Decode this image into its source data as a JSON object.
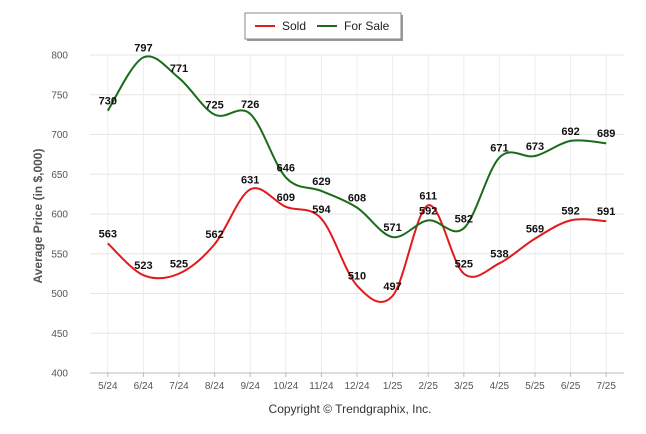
{
  "chart_data": {
    "type": "line",
    "categories": [
      "5/24",
      "6/24",
      "7/24",
      "8/24",
      "9/24",
      "10/24",
      "11/24",
      "12/24",
      "1/25",
      "2/25",
      "3/25",
      "4/25",
      "5/25",
      "6/25",
      "7/25"
    ],
    "series": [
      {
        "name": "Sold",
        "color": "#e31a1c",
        "values": [
          563,
          523,
          525,
          562,
          631,
          609,
          594,
          510,
          497,
          611,
          525,
          538,
          569,
          592,
          591
        ]
      },
      {
        "name": "For Sale",
        "color": "#1a6b1a",
        "values": [
          730,
          797,
          771,
          725,
          726,
          646,
          629,
          608,
          571,
          592,
          582,
          671,
          673,
          692,
          689
        ]
      }
    ],
    "ylabel": "Average Price (in $,000)",
    "yticks": [
      400,
      450,
      500,
      550,
      600,
      650,
      700,
      750,
      800
    ],
    "ylim": [
      400,
      800
    ],
    "grid": true,
    "legend": "top-center"
  },
  "footer": {
    "copyright": "Copyright © Trendgraphix, Inc."
  }
}
